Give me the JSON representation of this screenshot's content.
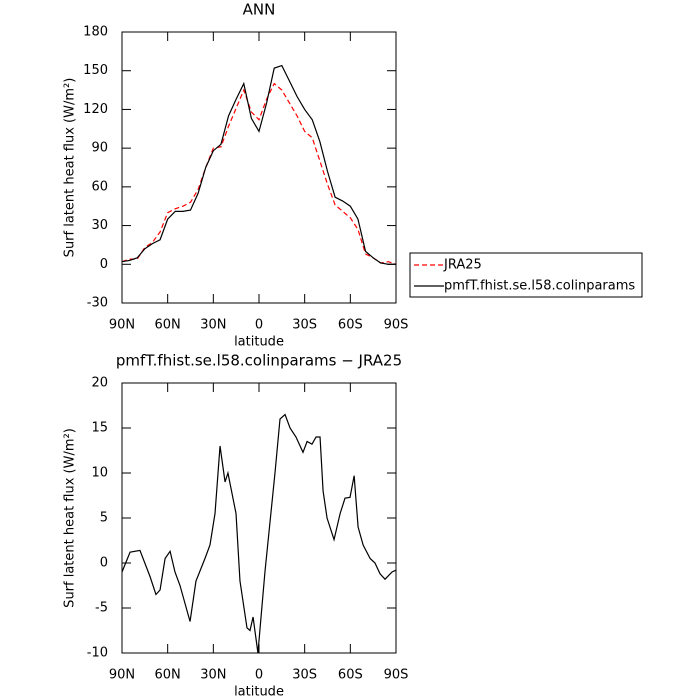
{
  "chart_data": [
    {
      "type": "line",
      "title": "ANN",
      "x_label": "latitude",
      "y_label": "Surf latent heat flux (W/m²)",
      "x": [
        90,
        85,
        80,
        75,
        70,
        65,
        60,
        55,
        50,
        45,
        40,
        35,
        30,
        25,
        20,
        15,
        10,
        5,
        0,
        -5,
        -10,
        -15,
        -20,
        -25,
        -30,
        -35,
        -40,
        -45,
        -50,
        -55,
        -60,
        -65,
        -70,
        -75,
        -80,
        -85,
        -90
      ],
      "series": [
        {
          "name": "JRA25",
          "color": "#ff0000",
          "dash": true,
          "values": [
            2,
            4,
            4,
            13,
            17,
            25,
            40,
            43,
            45,
            48,
            58,
            75,
            90,
            91,
            107,
            121,
            135,
            118,
            112,
            128,
            140,
            135,
            125,
            115,
            103,
            98,
            80,
            62,
            46,
            41,
            36,
            27,
            8,
            5,
            1,
            2,
            0
          ]
        },
        {
          "name": "pmfT.fhist.se.l58.colinparams",
          "color": "#000000",
          "dash": false,
          "values": [
            2,
            3,
            5,
            12,
            16,
            19,
            35,
            41,
            41,
            42,
            55,
            75,
            88,
            93,
            115,
            128,
            140,
            113,
            103,
            125,
            152,
            154,
            142,
            130,
            120,
            112,
            95,
            72,
            52,
            49,
            45,
            35,
            10,
            5,
            1,
            0,
            0
          ]
        }
      ],
      "xlim": [
        90,
        -90
      ],
      "xticks": [
        {
          "value": 90,
          "label": "90N"
        },
        {
          "value": 60,
          "label": "60N"
        },
        {
          "value": 30,
          "label": "30N"
        },
        0,
        {
          "value": -30,
          "label": "30S"
        },
        {
          "value": -60,
          "label": "60S"
        },
        {
          "value": -90,
          "label": "90S"
        }
      ],
      "ylim": [
        -30,
        180
      ],
      "yticks": [
        -30,
        0,
        30,
        60,
        90,
        120,
        150,
        180
      ],
      "legend": "outside-right"
    },
    {
      "type": "line",
      "title": "pmfT.fhist.se.l58.colinparams − JRA25",
      "x_label": "latitude",
      "y_label": "Surf latent heat flux (W/m²)",
      "x": [
        90,
        84.7,
        78.2,
        71.6,
        67.7,
        65,
        61.7,
        58.4,
        55.2,
        51.9,
        45.3,
        41.4,
        35.5,
        32.2,
        28.9,
        25.6,
        22.3,
        20.4,
        15.1,
        12.5,
        7.9,
        5.9,
        3.9,
        0.7,
        -3.9,
        -10.5,
        -13.8,
        -17.1,
        -20.4,
        -24.3,
        -28.9,
        -31.6,
        -34.8,
        -37.5,
        -40.1,
        -42.1,
        -44.7,
        -49.3,
        -53.3,
        -56.5,
        -59.8,
        -62.5,
        -65.1,
        -68.4,
        -73,
        -76.2,
        -79.5,
        -82.8,
        -87.4,
        -90
      ],
      "series": [
        {
          "color": "#000000",
          "values": [
            -1,
            1.2,
            1.4,
            -1.5,
            -3.5,
            -3,
            0.5,
            1.3,
            -1,
            -2.5,
            -6.5,
            -2,
            0.5,
            2,
            5.5,
            13,
            9,
            10,
            5.5,
            -2,
            -7.2,
            -7.5,
            -6,
            -10,
            -1,
            10,
            16,
            16.5,
            15,
            14,
            12.3,
            13.5,
            13.2,
            14,
            14,
            8,
            5,
            2.6,
            5.5,
            7.2,
            7.3,
            9.7,
            4,
            2,
            0.5,
            0,
            -1.2,
            -1.8,
            -1,
            -0.8
          ]
        }
      ],
      "xlim": [
        90,
        -90
      ],
      "xticks": [
        {
          "value": 90,
          "label": "90N"
        },
        {
          "value": 60,
          "label": "60N"
        },
        {
          "value": 30,
          "label": "30N"
        },
        0,
        {
          "value": -30,
          "label": "30S"
        },
        {
          "value": -60,
          "label": "60S"
        },
        {
          "value": -90,
          "label": "90S"
        }
      ],
      "ylim": [
        -10,
        20
      ],
      "yticks": [
        -10,
        -5,
        0,
        5,
        10,
        15,
        20
      ]
    }
  ]
}
